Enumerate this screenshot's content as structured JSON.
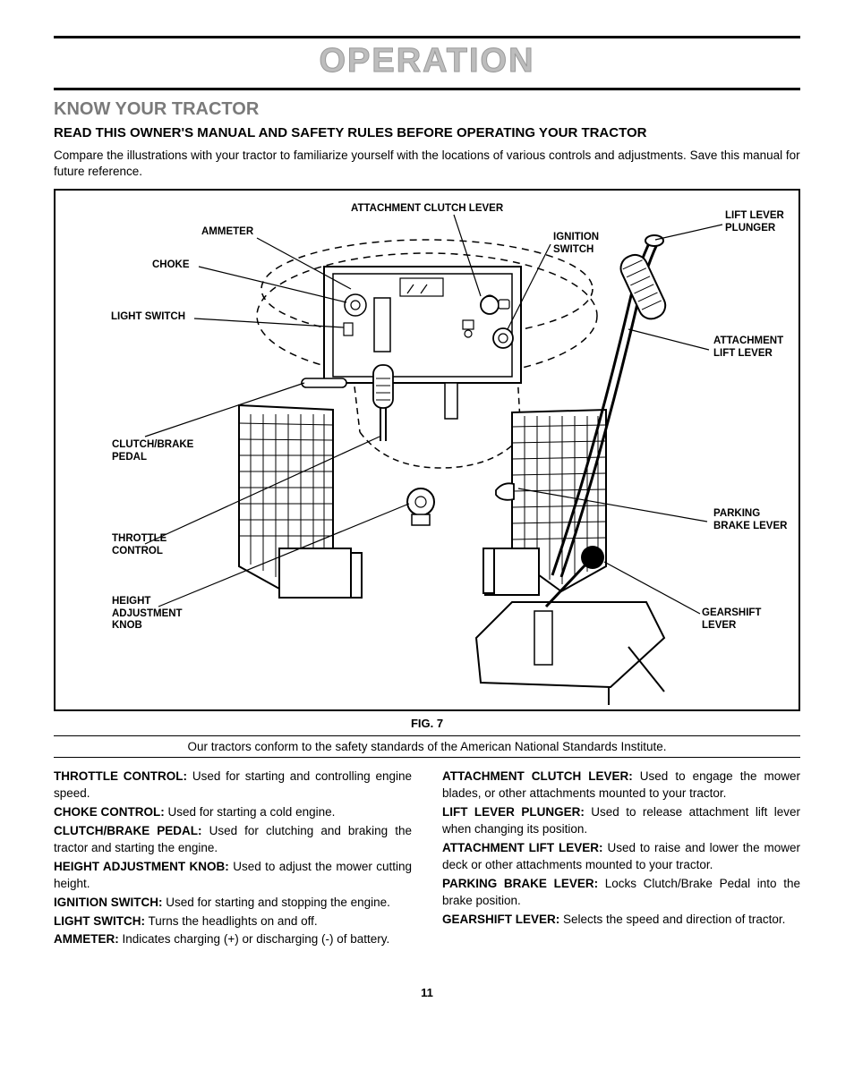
{
  "page_title": "OPERATION",
  "section_title": "KNOW YOUR TRACTOR",
  "sub_title": "READ THIS OWNER'S MANUAL AND SAFETY RULES BEFORE OPERATING YOUR TRACTOR",
  "intro": "Compare the illustrations with your tractor to familiarize yourself with the locations of various controls and adjustments. Save this manual for future reference.",
  "diagram": {
    "labels": {
      "attachment_clutch_lever": "ATTACHMENT CLUTCH LEVER",
      "lift_lever_plunger_l1": "LIFT LEVER",
      "lift_lever_plunger_l2": "PLUNGER",
      "ammeter": "AMMETER",
      "ignition_switch_l1": "IGNITION",
      "ignition_switch_l2": "SWITCH",
      "choke": "CHOKE",
      "light_switch": "LIGHT SWITCH",
      "attachment_lift_lever_l1": "ATTACHMENT",
      "attachment_lift_lever_l2": "LIFT LEVER",
      "clutch_brake_pedal_l1": "CLUTCH/BRAKE",
      "clutch_brake_pedal_l2": "PEDAL",
      "parking_brake_lever_l1": "PARKING",
      "parking_brake_lever_l2": "BRAKE LEVER",
      "throttle_control_l1": "THROTTLE",
      "throttle_control_l2": "CONTROL",
      "height_adj_knob_l1": "HEIGHT",
      "height_adj_knob_l2": "ADJUSTMENT",
      "height_adj_knob_l3": "KNOB",
      "gearshift_lever_l1": "GEARSHIFT",
      "gearshift_lever_l2": "LEVER"
    },
    "caption": "FIG. 7"
  },
  "conformance": "Our tractors conform to the safety standards of the American National Standards Institute.",
  "definitions": {
    "left": [
      {
        "term": "THROTTLE CONTROL:",
        "desc": " Used for starting and controlling engine speed."
      },
      {
        "term": "CHOKE CONTROL:",
        "desc": " Used for starting a cold engine."
      },
      {
        "term": "CLUTCH/BRAKE PEDAL:",
        "desc": " Used for clutching and braking the tractor and starting the engine."
      },
      {
        "term": "HEIGHT ADJUSTMENT KNOB:",
        "desc": " Used to adjust the mower cutting height."
      },
      {
        "term": "IGNITION SWITCH:",
        "desc": " Used for starting and stopping the engine."
      },
      {
        "term": "LIGHT SWITCH:",
        "desc": " Turns the headlights on and off."
      },
      {
        "term": "AMMETER:",
        "desc": " Indicates charging (+) or discharging (-) of battery."
      }
    ],
    "right": [
      {
        "term": "ATTACHMENT CLUTCH LEVER:",
        "desc": " Used to engage the mower blades, or other attachments mounted to your tractor."
      },
      {
        "term": "LIFT LEVER PLUNGER:",
        "desc": " Used to release attachment lift lever when changing its position."
      },
      {
        "term": "ATTACHMENT LIFT LEVER:",
        "desc": " Used to raise and lower the mower deck or other attachments mounted to your tractor."
      },
      {
        "term": "PARKING BRAKE LEVER:",
        "desc": " Locks Clutch/Brake Pedal into the brake position."
      },
      {
        "term": "GEARSHIFT LEVER:",
        "desc": " Selects the speed and direction of tractor."
      }
    ]
  },
  "page_number": "11"
}
